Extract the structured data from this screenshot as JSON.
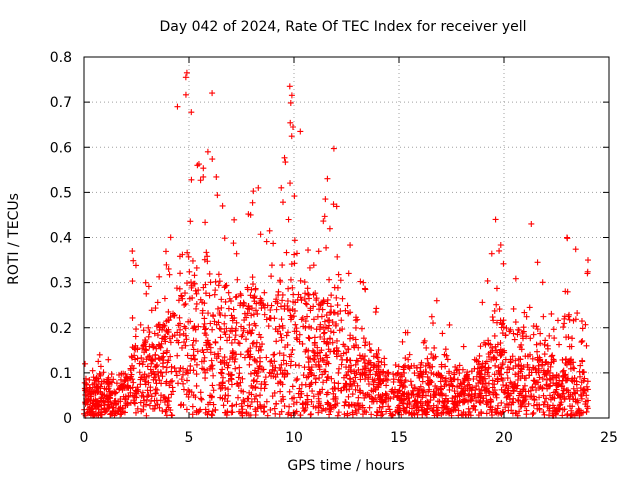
{
  "chart_data": {
    "type": "scatter",
    "title": "Day 042 of 2024, Rate Of TEC Index for receiver yell",
    "xlabel": "GPS time / hours",
    "ylabel": "ROTI / TECUs",
    "xlim": [
      0,
      25
    ],
    "ylim": [
      0,
      0.8
    ],
    "x_ticks": [
      0,
      5,
      10,
      15,
      20,
      25
    ],
    "y_ticks": [
      0,
      0.1,
      0.2,
      0.3,
      0.4,
      0.5,
      0.6,
      0.7,
      0.8
    ],
    "x_tick_labels": [
      "0",
      "5",
      "10",
      "15",
      "20",
      "25"
    ],
    "y_tick_labels": [
      "0",
      "0.1",
      "0.2",
      "0.3",
      "0.4",
      "0.5",
      "0.6",
      "0.7",
      "0.8"
    ],
    "grid": true,
    "marker": "+",
    "marker_color": "#ff0000",
    "data_extent_hours": [
      0,
      24
    ],
    "envelope": [
      {
        "t": 0.0,
        "typ": 0.04,
        "max": 0.12
      },
      {
        "t": 1.0,
        "typ": 0.05,
        "max": 0.14
      },
      {
        "t": 2.0,
        "typ": 0.05,
        "max": 0.1
      },
      {
        "t": 2.3,
        "typ": 0.1,
        "max": 0.37
      },
      {
        "t": 3.0,
        "typ": 0.11,
        "max": 0.33
      },
      {
        "t": 4.0,
        "typ": 0.14,
        "max": 0.4
      },
      {
        "t": 4.5,
        "typ": 0.2,
        "max": 0.69
      },
      {
        "t": 4.9,
        "typ": 0.22,
        "max": 0.76
      },
      {
        "t": 5.5,
        "typ": 0.18,
        "max": 0.56
      },
      {
        "t": 6.1,
        "typ": 0.2,
        "max": 0.72
      },
      {
        "t": 7.0,
        "typ": 0.17,
        "max": 0.45
      },
      {
        "t": 8.0,
        "typ": 0.16,
        "max": 0.51
      },
      {
        "t": 9.0,
        "typ": 0.17,
        "max": 0.45
      },
      {
        "t": 9.8,
        "typ": 0.18,
        "max": 0.73
      },
      {
        "t": 10.3,
        "typ": 0.17,
        "max": 0.63
      },
      {
        "t": 11.0,
        "typ": 0.17,
        "max": 0.45
      },
      {
        "t": 11.9,
        "typ": 0.16,
        "max": 0.6
      },
      {
        "t": 12.5,
        "typ": 0.12,
        "max": 0.47
      },
      {
        "t": 13.5,
        "typ": 0.08,
        "max": 0.3
      },
      {
        "t": 14.5,
        "typ": 0.06,
        "max": 0.18
      },
      {
        "t": 16.0,
        "typ": 0.06,
        "max": 0.2
      },
      {
        "t": 16.8,
        "typ": 0.06,
        "max": 0.26
      },
      {
        "t": 18.0,
        "typ": 0.05,
        "max": 0.17
      },
      {
        "t": 19.0,
        "typ": 0.08,
        "max": 0.27
      },
      {
        "t": 19.6,
        "typ": 0.1,
        "max": 0.44
      },
      {
        "t": 20.5,
        "typ": 0.08,
        "max": 0.3
      },
      {
        "t": 21.3,
        "typ": 0.08,
        "max": 0.43
      },
      {
        "t": 22.0,
        "typ": 0.08,
        "max": 0.32
      },
      {
        "t": 23.0,
        "typ": 0.08,
        "max": 0.4
      },
      {
        "t": 24.0,
        "typ": 0.06,
        "max": 0.35
      }
    ],
    "notable_points": [
      {
        "x": 4.9,
        "y": 0.765
      },
      {
        "x": 4.85,
        "y": 0.755
      },
      {
        "x": 6.1,
        "y": 0.72
      },
      {
        "x": 4.45,
        "y": 0.69
      },
      {
        "x": 9.8,
        "y": 0.735
      },
      {
        "x": 9.9,
        "y": 0.715
      },
      {
        "x": 10.3,
        "y": 0.635
      },
      {
        "x": 11.9,
        "y": 0.597
      },
      {
        "x": 5.4,
        "y": 0.56
      },
      {
        "x": 5.9,
        "y": 0.59
      },
      {
        "x": 6.6,
        "y": 0.47
      },
      {
        "x": 8.3,
        "y": 0.51
      },
      {
        "x": 19.6,
        "y": 0.44
      },
      {
        "x": 21.3,
        "y": 0.43
      },
      {
        "x": 23.0,
        "y": 0.4
      },
      {
        "x": 24.0,
        "y": 0.35
      },
      {
        "x": 2.3,
        "y": 0.37
      },
      {
        "x": 16.8,
        "y": 0.26
      },
      {
        "x": 13.3,
        "y": 0.3
      },
      {
        "x": 0.05,
        "y": 0.12
      },
      {
        "x": 0.75,
        "y": 0.14
      }
    ]
  }
}
